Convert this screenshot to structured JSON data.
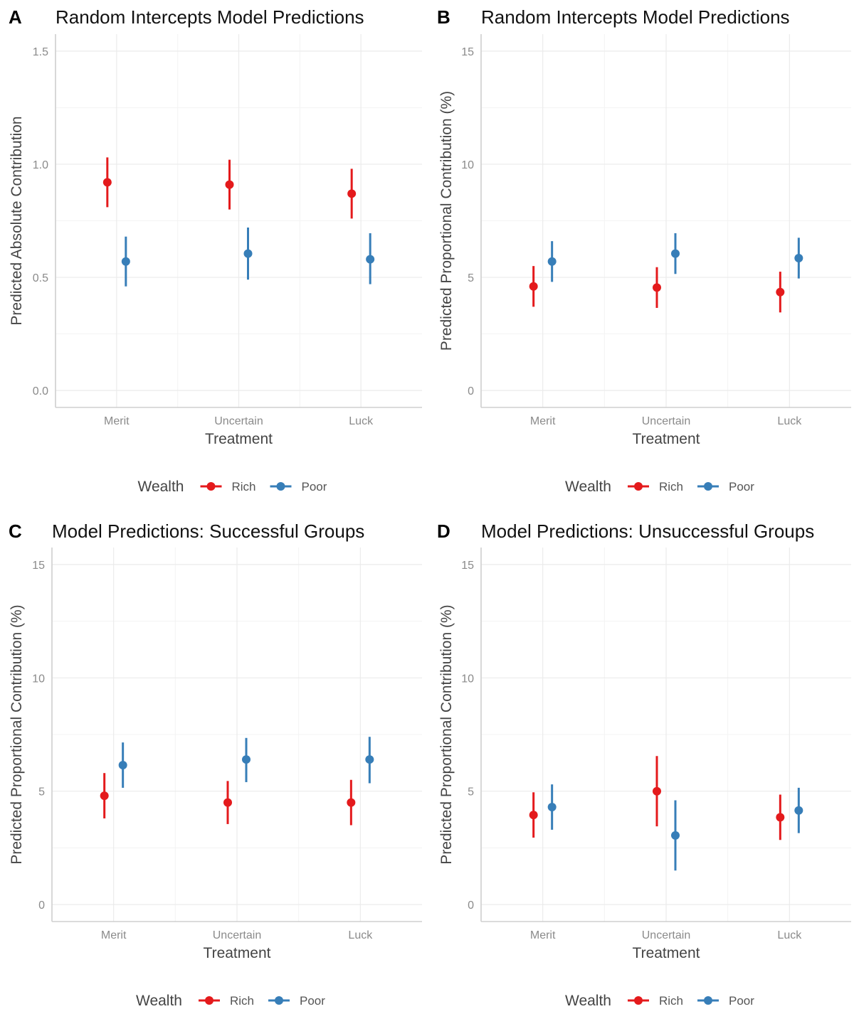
{
  "legend": {
    "title": "Wealth",
    "items": [
      {
        "label": "Rich",
        "color": "#e41a1c"
      },
      {
        "label": "Poor",
        "color": "#377eb8"
      }
    ]
  },
  "chart_data": [
    {
      "panel": "A",
      "type": "pointrange",
      "title": "Random Intercepts Model Predictions",
      "xlabel": "Treatment",
      "ylabel": "Predicted Absolute Contribution",
      "categories": [
        "Merit",
        "Uncertain",
        "Luck"
      ],
      "ylim": [
        -0.075,
        1.575
      ],
      "yticks": [
        0.0,
        0.5,
        1.0,
        1.5
      ],
      "ytick_labels": [
        "0.0",
        "0.5",
        "1.0",
        "1.5"
      ],
      "grid": true,
      "legend_position": "bottom",
      "series": [
        {
          "name": "Rich",
          "color": "#e41a1c",
          "values": [
            0.92,
            0.91,
            0.87
          ],
          "lower": [
            0.81,
            0.8,
            0.76
          ],
          "upper": [
            1.03,
            1.02,
            0.98
          ]
        },
        {
          "name": "Poor",
          "color": "#377eb8",
          "values": [
            0.57,
            0.605,
            0.58
          ],
          "lower": [
            0.46,
            0.49,
            0.47
          ],
          "upper": [
            0.68,
            0.72,
            0.695
          ]
        }
      ]
    },
    {
      "panel": "B",
      "type": "pointrange",
      "title": "Random Intercepts Model Predictions",
      "xlabel": "Treatment",
      "ylabel": "Predicted Proportional Contribution (%)",
      "categories": [
        "Merit",
        "Uncertain",
        "Luck"
      ],
      "ylim": [
        -0.75,
        15.75
      ],
      "yticks": [
        0,
        5,
        10,
        15
      ],
      "ytick_labels": [
        "0",
        "5",
        "10",
        "15"
      ],
      "grid": true,
      "legend_position": "bottom",
      "series": [
        {
          "name": "Rich",
          "color": "#e41a1c",
          "values": [
            4.6,
            4.55,
            4.35
          ],
          "lower": [
            3.7,
            3.65,
            3.45
          ],
          "upper": [
            5.5,
            5.45,
            5.25
          ]
        },
        {
          "name": "Poor",
          "color": "#377eb8",
          "values": [
            5.7,
            6.05,
            5.85
          ],
          "lower": [
            4.8,
            5.15,
            4.95
          ],
          "upper": [
            6.6,
            6.95,
            6.75
          ]
        }
      ]
    },
    {
      "panel": "C",
      "type": "pointrange",
      "title": "Model Predictions: Successful Groups",
      "xlabel": "Treatment",
      "ylabel": "Predicted Proportional Contribution (%)",
      "categories": [
        "Merit",
        "Uncertain",
        "Luck"
      ],
      "ylim": [
        -0.75,
        15.75
      ],
      "yticks": [
        0,
        5,
        10,
        15
      ],
      "ytick_labels": [
        "0",
        "5",
        "10",
        "15"
      ],
      "grid": true,
      "legend_position": "bottom",
      "series": [
        {
          "name": "Rich",
          "color": "#e41a1c",
          "values": [
            4.8,
            4.5,
            4.5
          ],
          "lower": [
            3.8,
            3.55,
            3.5
          ],
          "upper": [
            5.8,
            5.45,
            5.5
          ]
        },
        {
          "name": "Poor",
          "color": "#377eb8",
          "values": [
            6.15,
            6.4,
            6.4
          ],
          "lower": [
            5.15,
            5.4,
            5.35
          ],
          "upper": [
            7.15,
            7.35,
            7.4
          ]
        }
      ]
    },
    {
      "panel": "D",
      "type": "pointrange",
      "title": "Model Predictions: Unsuccessful Groups",
      "xlabel": "Treatment",
      "ylabel": "Predicted Proportional Contribution (%)",
      "categories": [
        "Merit",
        "Uncertain",
        "Luck"
      ],
      "ylim": [
        -0.75,
        15.75
      ],
      "yticks": [
        0,
        5,
        10,
        15
      ],
      "ytick_labels": [
        "0",
        "5",
        "10",
        "15"
      ],
      "grid": true,
      "legend_position": "bottom",
      "series": [
        {
          "name": "Rich",
          "color": "#e41a1c",
          "values": [
            3.95,
            5.0,
            3.85
          ],
          "lower": [
            2.95,
            3.45,
            2.85
          ],
          "upper": [
            4.95,
            6.55,
            4.85
          ]
        },
        {
          "name": "Poor",
          "color": "#377eb8",
          "values": [
            4.3,
            3.05,
            4.15
          ],
          "lower": [
            3.3,
            1.5,
            3.15
          ],
          "upper": [
            5.3,
            4.6,
            5.15
          ]
        }
      ]
    }
  ]
}
